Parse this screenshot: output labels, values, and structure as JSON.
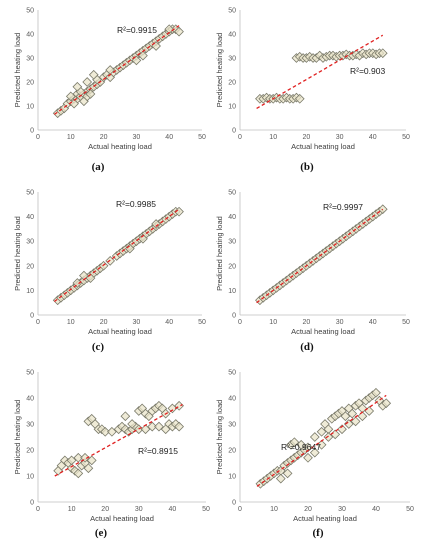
{
  "colors": {
    "marker_edge": "#7a7a6a",
    "marker_fill": "#e9e4c9",
    "fit_line": "#e02020",
    "fit_line_alt": "#a06a4a"
  },
  "chart_data": [
    {
      "type": "scatter",
      "panel_label": "(a)",
      "xlabel": "Actual  heating load",
      "ylabel": "Predicted  heating load",
      "xlim": [
        0,
        50
      ],
      "ylim": [
        0,
        50
      ],
      "xticks": [
        "0",
        "10",
        "20",
        "30",
        "40",
        "50"
      ],
      "yticks": [
        "0",
        "10",
        "20",
        "30",
        "40",
        "50"
      ],
      "annotation": "R²=0.9915",
      "fit_line": {
        "from": [
          5,
          6.5
        ],
        "to": [
          43,
          43.5
        ]
      },
      "points": [
        [
          6,
          7
        ],
        [
          7,
          8
        ],
        [
          8,
          9
        ],
        [
          9,
          11
        ],
        [
          10,
          12
        ],
        [
          11,
          13
        ],
        [
          12,
          13
        ],
        [
          12,
          15
        ],
        [
          13,
          14
        ],
        [
          14,
          15
        ],
        [
          15,
          16
        ],
        [
          16,
          17
        ],
        [
          17,
          18
        ],
        [
          18,
          19
        ],
        [
          19,
          20
        ],
        [
          20,
          22
        ],
        [
          21,
          23
        ],
        [
          22,
          22
        ],
        [
          23,
          24
        ],
        [
          24,
          25
        ],
        [
          25,
          26
        ],
        [
          26,
          27
        ],
        [
          27,
          28
        ],
        [
          28,
          29
        ],
        [
          29,
          30
        ],
        [
          30,
          31
        ],
        [
          31,
          32
        ],
        [
          32,
          33
        ],
        [
          33,
          34
        ],
        [
          34,
          35
        ],
        [
          35,
          36
        ],
        [
          36,
          37
        ],
        [
          37,
          38
        ],
        [
          38,
          39
        ],
        [
          39,
          40
        ],
        [
          40,
          41
        ],
        [
          41,
          42
        ],
        [
          42,
          42
        ],
        [
          43,
          41
        ],
        [
          14,
          12
        ],
        [
          15,
          14
        ],
        [
          16,
          15
        ],
        [
          11,
          11
        ],
        [
          13,
          16
        ],
        [
          18,
          21
        ],
        [
          22,
          25
        ],
        [
          30,
          29
        ],
        [
          32,
          31
        ],
        [
          36,
          35
        ],
        [
          40,
          42
        ],
        [
          12,
          18
        ],
        [
          15,
          20
        ],
        [
          10,
          14
        ],
        [
          17,
          23
        ]
      ]
    },
    {
      "type": "scatter",
      "panel_label": "(b)",
      "xlabel": "Actual  heating load",
      "ylabel": "Predicted  heating load",
      "xlim": [
        0,
        50
      ],
      "ylim": [
        0,
        50
      ],
      "xticks": [
        "0",
        "10",
        "20",
        "30",
        "40",
        "50"
      ],
      "yticks": [
        "0",
        "10",
        "20",
        "30",
        "40",
        "50"
      ],
      "annotation": "R²=0.903",
      "fit_line": {
        "from": [
          5,
          9
        ],
        "to": [
          43,
          39.5
        ]
      },
      "points": [
        [
          6,
          13
        ],
        [
          7,
          13
        ],
        [
          8,
          13.5
        ],
        [
          9,
          13
        ],
        [
          10,
          13
        ],
        [
          11,
          13.5
        ],
        [
          12,
          13
        ],
        [
          13,
          13
        ],
        [
          14,
          13.5
        ],
        [
          15,
          13
        ],
        [
          16,
          13
        ],
        [
          17,
          13.5
        ],
        [
          18,
          13
        ],
        [
          17,
          30
        ],
        [
          18,
          30.5
        ],
        [
          19,
          30
        ],
        [
          20,
          30
        ],
        [
          21,
          30.5
        ],
        [
          22,
          30
        ],
        [
          23,
          30
        ],
        [
          24,
          31
        ],
        [
          25,
          30
        ],
        [
          26,
          30.5
        ],
        [
          27,
          31
        ],
        [
          28,
          31
        ],
        [
          29,
          30.5
        ],
        [
          30,
          31
        ],
        [
          31,
          31
        ],
        [
          32,
          31.5
        ],
        [
          33,
          31
        ],
        [
          34,
          31
        ],
        [
          35,
          31.5
        ],
        [
          36,
          31
        ],
        [
          37,
          32
        ],
        [
          38,
          31.5
        ],
        [
          39,
          32
        ],
        [
          40,
          32
        ],
        [
          41,
          31.5
        ],
        [
          42,
          32
        ],
        [
          43,
          32
        ]
      ]
    },
    {
      "type": "scatter",
      "panel_label": "(c)",
      "xlabel": "Actual  heating load",
      "ylabel": "Predicted  heating load",
      "xlim": [
        0,
        50
      ],
      "ylim": [
        0,
        50
      ],
      "xticks": [
        "0",
        "10",
        "20",
        "30",
        "40",
        "50"
      ],
      "yticks": [
        "0",
        "10",
        "20",
        "30",
        "40",
        "50"
      ],
      "annotation": "R²=0.9985",
      "fit_line": {
        "from": [
          5,
          5.5
        ],
        "to": [
          43,
          43
        ]
      },
      "points": [
        [
          6,
          6
        ],
        [
          7,
          7
        ],
        [
          8,
          8
        ],
        [
          9,
          9
        ],
        [
          10,
          10
        ],
        [
          11,
          11
        ],
        [
          12,
          12
        ],
        [
          13,
          13
        ],
        [
          14,
          14
        ],
        [
          15,
          15
        ],
        [
          16,
          16
        ],
        [
          17,
          17
        ],
        [
          18,
          18
        ],
        [
          19,
          19
        ],
        [
          20,
          20
        ],
        [
          22,
          22
        ],
        [
          24,
          24
        ],
        [
          25,
          25
        ],
        [
          26,
          26
        ],
        [
          27,
          27
        ],
        [
          28,
          28
        ],
        [
          29,
          29
        ],
        [
          30,
          30
        ],
        [
          31,
          31
        ],
        [
          32,
          32
        ],
        [
          33,
          33
        ],
        [
          34,
          34
        ],
        [
          35,
          35
        ],
        [
          36,
          36
        ],
        [
          37,
          37
        ],
        [
          38,
          38
        ],
        [
          39,
          39
        ],
        [
          40,
          40
        ],
        [
          41,
          41
        ],
        [
          42,
          42
        ],
        [
          43,
          42
        ],
        [
          12,
          13
        ],
        [
          14,
          16
        ],
        [
          16,
          15
        ],
        [
          28,
          27
        ],
        [
          32,
          31
        ],
        [
          36,
          37
        ]
      ]
    },
    {
      "type": "scatter",
      "panel_label": "(d)",
      "xlabel": "Actual  heating load",
      "ylabel": "Predicted  heating load",
      "xlim": [
        0,
        50
      ],
      "ylim": [
        0,
        50
      ],
      "xticks": [
        "0",
        "10",
        "20",
        "30",
        "40",
        "50"
      ],
      "yticks": [
        "0",
        "10",
        "20",
        "30",
        "40",
        "50"
      ],
      "annotation": "R²=0.9997",
      "fit_line": {
        "from": [
          5,
          5
        ],
        "to": [
          43,
          43
        ]
      },
      "points": [
        [
          6,
          6
        ],
        [
          7,
          7
        ],
        [
          8,
          8
        ],
        [
          9,
          9
        ],
        [
          10,
          10
        ],
        [
          11,
          11
        ],
        [
          12,
          12
        ],
        [
          13,
          13
        ],
        [
          14,
          14
        ],
        [
          15,
          15
        ],
        [
          16,
          16
        ],
        [
          17,
          17
        ],
        [
          18,
          18
        ],
        [
          19,
          19
        ],
        [
          20,
          20
        ],
        [
          21,
          21
        ],
        [
          22,
          22
        ],
        [
          23,
          23
        ],
        [
          24,
          24
        ],
        [
          25,
          25
        ],
        [
          26,
          26
        ],
        [
          27,
          27
        ],
        [
          28,
          28
        ],
        [
          29,
          29
        ],
        [
          30,
          30
        ],
        [
          31,
          31
        ],
        [
          32,
          32
        ],
        [
          33,
          33
        ],
        [
          34,
          34
        ],
        [
          35,
          35
        ],
        [
          36,
          36
        ],
        [
          37,
          37
        ],
        [
          38,
          38
        ],
        [
          39,
          39
        ],
        [
          40,
          40
        ],
        [
          41,
          41
        ],
        [
          42,
          42
        ],
        [
          43,
          43
        ]
      ]
    },
    {
      "type": "scatter",
      "panel_label": "(e)",
      "xlabel": "Actual heating load",
      "ylabel": "Predicted  heating load",
      "xlim": [
        0,
        50
      ],
      "ylim": [
        0,
        50
      ],
      "xticks": [
        "0",
        "10",
        "20",
        "30",
        "40",
        "50"
      ],
      "yticks": [
        "0",
        "10",
        "20",
        "30",
        "40",
        "50"
      ],
      "annotation": "R²=0.8915",
      "fit_line": {
        "from": [
          5,
          10
        ],
        "to": [
          43,
          37.5
        ]
      },
      "points": [
        [
          6,
          12
        ],
        [
          7,
          14
        ],
        [
          8,
          16
        ],
        [
          9,
          15
        ],
        [
          10,
          13
        ],
        [
          11,
          12
        ],
        [
          12,
          11
        ],
        [
          13,
          14
        ],
        [
          14,
          15
        ],
        [
          15,
          13
        ],
        [
          12,
          17
        ],
        [
          14,
          17
        ],
        [
          16,
          16
        ],
        [
          10,
          16
        ],
        [
          15,
          31
        ],
        [
          16,
          32
        ],
        [
          17,
          30
        ],
        [
          18,
          28
        ],
        [
          19,
          28
        ],
        [
          20,
          27
        ],
        [
          22,
          27
        ],
        [
          24,
          28
        ],
        [
          25,
          29
        ],
        [
          26,
          28
        ],
        [
          27,
          27
        ],
        [
          28,
          28
        ],
        [
          29,
          29
        ],
        [
          30,
          35
        ],
        [
          31,
          36
        ],
        [
          32,
          34
        ],
        [
          33,
          33
        ],
        [
          34,
          35
        ],
        [
          35,
          36
        ],
        [
          36,
          37
        ],
        [
          37,
          36
        ],
        [
          38,
          34
        ],
        [
          39,
          30
        ],
        [
          40,
          29
        ],
        [
          41,
          30
        ],
        [
          42,
          29
        ],
        [
          30,
          28
        ],
        [
          32,
          28
        ],
        [
          34,
          29
        ],
        [
          36,
          29
        ],
        [
          38,
          28
        ],
        [
          40,
          36
        ],
        [
          42,
          37
        ],
        [
          26,
          33
        ],
        [
          28,
          30
        ]
      ]
    },
    {
      "type": "scatter",
      "panel_label": "(f)",
      "xlabel": "Actual heating load",
      "ylabel": "Predicted  heating load",
      "xlim": [
        0,
        50
      ],
      "ylim": [
        0,
        50
      ],
      "xticks": [
        "0",
        "10",
        "20",
        "30",
        "40",
        "50"
      ],
      "yticks": [
        "0",
        "10",
        "20",
        "30",
        "40",
        "50"
      ],
      "annotation": "R²=0.9647",
      "fit_line": {
        "from": [
          5,
          6
        ],
        "to": [
          43,
          41
        ]
      },
      "points": [
        [
          6,
          7
        ],
        [
          7,
          8
        ],
        [
          8,
          9
        ],
        [
          9,
          10
        ],
        [
          10,
          11
        ],
        [
          11,
          12
        ],
        [
          12,
          12
        ],
        [
          13,
          14
        ],
        [
          14,
          15
        ],
        [
          15,
          16
        ],
        [
          16,
          17
        ],
        [
          17,
          18
        ],
        [
          18,
          19
        ],
        [
          19,
          20
        ],
        [
          20,
          21
        ],
        [
          15,
          22
        ],
        [
          16,
          23
        ],
        [
          18,
          22
        ],
        [
          22,
          25
        ],
        [
          24,
          27
        ],
        [
          25,
          30
        ],
        [
          26,
          28
        ],
        [
          27,
          32
        ],
        [
          28,
          33
        ],
        [
          29,
          34
        ],
        [
          30,
          35
        ],
        [
          31,
          33
        ],
        [
          32,
          36
        ],
        [
          33,
          34
        ],
        [
          34,
          37
        ],
        [
          35,
          38
        ],
        [
          36,
          36
        ],
        [
          37,
          39
        ],
        [
          38,
          40
        ],
        [
          39,
          41
        ],
        [
          40,
          42
        ],
        [
          41,
          39
        ],
        [
          42,
          37
        ],
        [
          43,
          38
        ],
        [
          24,
          22
        ],
        [
          26,
          25
        ],
        [
          28,
          26
        ],
        [
          30,
          28
        ],
        [
          32,
          30
        ],
        [
          34,
          31
        ],
        [
          36,
          33
        ],
        [
          38,
          35
        ],
        [
          12,
          9
        ],
        [
          14,
          11
        ],
        [
          20,
          17
        ],
        [
          22,
          19
        ]
      ]
    }
  ]
}
